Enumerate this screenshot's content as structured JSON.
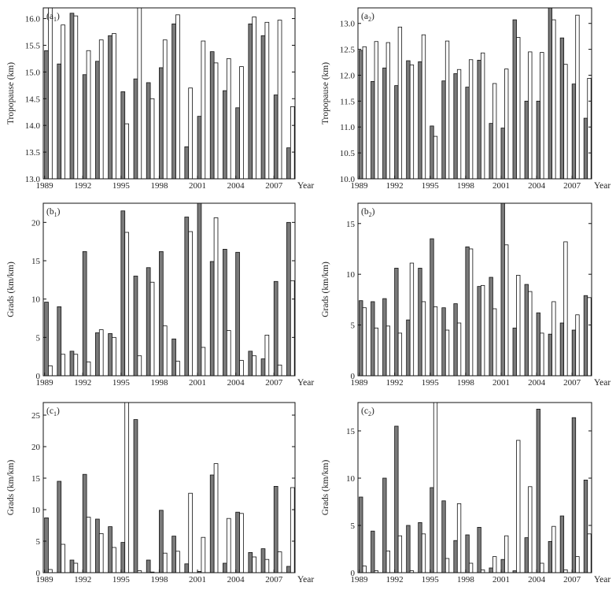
{
  "chart_data": [
    {
      "id": "a1",
      "panel_label": "(a",
      "panel_sub": "1",
      "type": "bar",
      "ylabel": "Tropopause (km)",
      "xlabel": "Year",
      "ylim": [
        13.0,
        16.2
      ],
      "yticks": [
        13.0,
        13.5,
        14.0,
        14.5,
        15.0,
        15.5,
        16.0
      ],
      "ytick_labels": [
        "13.0",
        "13.5",
        "14.0",
        "14.5",
        "15.0",
        "15.5",
        "16.0"
      ],
      "xticks": [
        1989,
        1992,
        1995,
        1998,
        2001,
        2004,
        2007
      ],
      "x": [
        1989,
        1990,
        1991,
        1992,
        1993,
        1994,
        1995,
        1996,
        1997,
        1998,
        1999,
        2000,
        2001,
        2002,
        2003,
        2004,
        2005,
        2006,
        2007,
        2008
      ],
      "series": [
        {
          "values": [
            15.4,
            15.15,
            16.1,
            14.95,
            15.2,
            15.68,
            14.63,
            14.87,
            14.8,
            15.08,
            15.9,
            13.6,
            14.17,
            15.38,
            14.65,
            14.33,
            15.9,
            15.68,
            14.57,
            13.58
          ]
        },
        {
          "values": [
            16.2,
            15.88,
            16.05,
            15.4,
            15.6,
            15.72,
            14.03,
            16.2,
            14.5,
            15.6,
            16.07,
            14.7,
            15.58,
            15.17,
            15.25,
            15.1,
            16.03,
            15.93,
            15.97,
            14.35
          ]
        }
      ]
    },
    {
      "id": "a2",
      "panel_label": "(a",
      "panel_sub": "2",
      "type": "bar",
      "ylabel": "Tropopause (km)",
      "xlabel": "Year",
      "ylim": [
        10.0,
        13.3
      ],
      "yticks": [
        10.0,
        10.5,
        11.0,
        11.5,
        12.0,
        12.5,
        13.0
      ],
      "ytick_labels": [
        "10.0",
        "10.5",
        "11.0",
        "11.5",
        "12.0",
        "12.5",
        "13.0"
      ],
      "xticks": [
        1989,
        1992,
        1995,
        1998,
        2001,
        2004,
        2007
      ],
      "x": [
        1989,
        1990,
        1991,
        1992,
        1993,
        1994,
        1995,
        1996,
        1997,
        1998,
        1999,
        2000,
        2001,
        2002,
        2003,
        2004,
        2005,
        2006,
        2007,
        2008
      ],
      "series": [
        {
          "values": [
            12.48,
            11.88,
            12.14,
            11.8,
            12.28,
            12.26,
            11.02,
            11.89,
            12.03,
            11.77,
            12.29,
            11.07,
            10.98,
            13.07,
            11.5,
            11.5,
            13.3,
            12.72,
            11.83,
            11.17
          ]
        },
        {
          "values": [
            12.55,
            12.65,
            12.63,
            12.93,
            12.2,
            12.78,
            10.82,
            12.66,
            12.11,
            12.3,
            12.43,
            11.84,
            12.12,
            12.73,
            12.45,
            12.44,
            13.07,
            12.21,
            13.16,
            11.94
          ]
        }
      ]
    },
    {
      "id": "b1",
      "panel_label": "(b",
      "panel_sub": "1",
      "type": "bar",
      "ylabel": "Grads (km/km)",
      "xlabel": "Year",
      "ylim": [
        0,
        22.5
      ],
      "yticks": [
        0,
        5,
        10,
        15,
        20
      ],
      "ytick_labels": [
        "0",
        "5",
        "10",
        "15",
        "20"
      ],
      "xticks": [
        1989,
        1992,
        1995,
        1998,
        2001,
        2004,
        2007
      ],
      "x": [
        1989,
        1990,
        1991,
        1992,
        1993,
        1994,
        1995,
        1996,
        1997,
        1998,
        1999,
        2000,
        2001,
        2002,
        2003,
        2004,
        2005,
        2006,
        2007,
        2008
      ],
      "series": [
        {
          "values": [
            9.6,
            9.0,
            3.2,
            16.2,
            5.6,
            5.5,
            21.5,
            13.0,
            14.1,
            16.2,
            4.8,
            20.7,
            22.5,
            14.9,
            16.5,
            16.1,
            3.2,
            2.2,
            12.3,
            20.0
          ]
        },
        {
          "values": [
            1.3,
            2.8,
            2.8,
            1.8,
            6.0,
            5.0,
            18.7,
            2.6,
            12.2,
            6.5,
            1.9,
            18.8,
            3.7,
            20.6,
            5.9,
            2.0,
            2.6,
            5.3,
            1.4,
            12.4
          ]
        }
      ]
    },
    {
      "id": "b2",
      "panel_label": "(b",
      "panel_sub": "2",
      "type": "bar",
      "ylabel": "Grads (km/km)",
      "xlabel": "Year",
      "ylim": [
        0,
        17
      ],
      "yticks": [
        0,
        5,
        10,
        15
      ],
      "ytick_labels": [
        "0",
        "5",
        "10",
        "15"
      ],
      "xticks": [
        1989,
        1992,
        1995,
        1998,
        2001,
        2004,
        2007
      ],
      "x": [
        1989,
        1990,
        1991,
        1992,
        1993,
        1994,
        1995,
        1996,
        1997,
        1998,
        1999,
        2000,
        2001,
        2002,
        2003,
        2004,
        2005,
        2006,
        2007,
        2008
      ],
      "series": [
        {
          "values": [
            7.4,
            7.3,
            7.6,
            10.6,
            5.5,
            10.6,
            13.5,
            6.7,
            7.1,
            12.7,
            8.8,
            9.7,
            17.0,
            4.7,
            9.0,
            6.2,
            4.1,
            5.2,
            4.5,
            7.9
          ]
        },
        {
          "values": [
            6.7,
            4.7,
            4.9,
            4.2,
            11.1,
            7.3,
            6.8,
            4.5,
            5.2,
            12.5,
            8.9,
            6.6,
            12.9,
            9.9,
            8.3,
            4.2,
            7.3,
            13.2,
            6.0,
            7.7
          ]
        }
      ]
    },
    {
      "id": "c1",
      "panel_label": "(c",
      "panel_sub": "1",
      "type": "bar",
      "ylabel": "Grads (km/km)",
      "xlabel": "Year",
      "ylim": [
        0,
        27
      ],
      "yticks": [
        0,
        5,
        10,
        15,
        20,
        25
      ],
      "ytick_labels": [
        "0",
        "5",
        "10",
        "15",
        "20",
        "25"
      ],
      "xticks": [
        1989,
        1992,
        1995,
        1998,
        2001,
        2004,
        2007
      ],
      "x": [
        1989,
        1990,
        1991,
        1992,
        1993,
        1994,
        1995,
        1996,
        1997,
        1998,
        1999,
        2000,
        2001,
        2002,
        2003,
        2004,
        2005,
        2006,
        2007,
        2008
      ],
      "series": [
        {
          "values": [
            8.7,
            14.5,
            2.0,
            15.6,
            8.5,
            7.3,
            4.8,
            24.3,
            2.0,
            9.9,
            5.8,
            1.4,
            0.2,
            15.5,
            1.5,
            9.6,
            3.2,
            3.8,
            13.7,
            1.0
          ]
        },
        {
          "values": [
            0.5,
            4.5,
            1.5,
            8.8,
            6.2,
            4.0,
            27.0,
            0.3,
            0.1,
            3.1,
            3.4,
            12.6,
            5.6,
            17.3,
            8.6,
            9.4,
            2.5,
            2.1,
            3.3,
            13.5
          ]
        }
      ]
    },
    {
      "id": "c2",
      "panel_label": "(c",
      "panel_sub": "2",
      "type": "bar",
      "ylabel": "Grads (km/km)",
      "xlabel": "Year",
      "ylim": [
        0,
        18
      ],
      "yticks": [
        0,
        5,
        10,
        15
      ],
      "ytick_labels": [
        "0",
        "5",
        "10",
        "15"
      ],
      "xticks": [
        1989,
        1992,
        1995,
        1998,
        2001,
        2004,
        2007
      ],
      "x": [
        1989,
        1990,
        1991,
        1992,
        1993,
        1994,
        1995,
        1996,
        1997,
        1998,
        1999,
        2000,
        2001,
        2002,
        2003,
        2004,
        2005,
        2006,
        2007,
        2008
      ],
      "series": [
        {
          "values": [
            8.0,
            4.4,
            10.0,
            15.5,
            5.0,
            5.3,
            9.0,
            7.6,
            3.4,
            4.0,
            4.8,
            0.5,
            1.4,
            0.2,
            3.7,
            17.3,
            3.3,
            6.0,
            16.4,
            9.8
          ]
        },
        {
          "values": [
            0.7,
            0.2,
            2.3,
            3.9,
            0.2,
            4.1,
            18.0,
            1.5,
            7.3,
            1.0,
            0.3,
            1.7,
            3.9,
            14.0,
            9.1,
            1.0,
            4.9,
            0.3,
            1.7,
            4.1
          ]
        }
      ]
    }
  ]
}
